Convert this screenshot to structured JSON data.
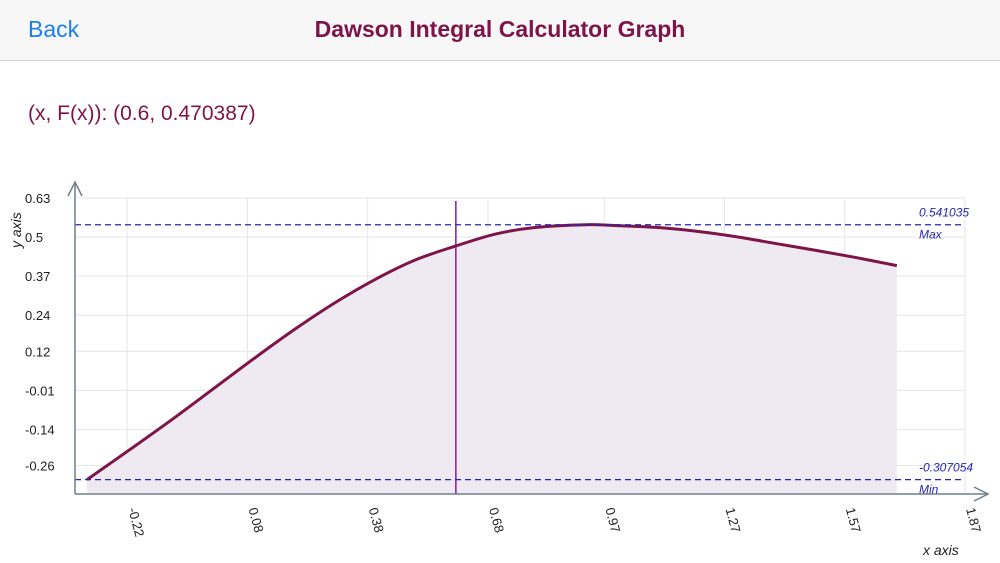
{
  "nav": {
    "back_label": "Back",
    "title": "Dawson Integral Calculator Graph"
  },
  "readout": {
    "text": "(x, F(x)): (0.6, 0.470387)"
  },
  "colors": {
    "curve": "#7e1448",
    "fill": "#efeaf2",
    "reference": "#2525b8",
    "cursor": "#8a1a9e",
    "back": "#1a7ff2"
  },
  "chart_data": {
    "type": "area",
    "xlabel": "x axis",
    "ylabel": "y axis",
    "xlim": [
      -0.35,
      1.87
    ],
    "ylim": [
      -0.355,
      0.63
    ],
    "x_ticks": [
      -0.22,
      0.08,
      0.38,
      0.68,
      0.97,
      1.27,
      1.57,
      1.87
    ],
    "y_ticks": [
      0.63,
      0.5,
      0.37,
      0.24,
      0.12,
      -0.01,
      -0.14,
      -0.26
    ],
    "x": [
      -0.32,
      -0.2,
      -0.1,
      0.0,
      0.1,
      0.2,
      0.3,
      0.4,
      0.5,
      0.6,
      0.7,
      0.8,
      0.924,
      1.0,
      1.1,
      1.2,
      1.3,
      1.4,
      1.5,
      1.6,
      1.7
    ],
    "y": [
      -0.307054,
      -0.1948,
      -0.0993,
      0.0,
      0.0993,
      0.1948,
      0.2826,
      0.3599,
      0.4244,
      0.470387,
      0.5105,
      0.5321,
      0.541035,
      0.5381,
      0.5321,
      0.5195,
      0.5011,
      0.478,
      0.4554,
      0.4313,
      0.405
    ],
    "cursor_x": 0.6,
    "reference_lines": [
      {
        "value": 0.541035,
        "value_text": "0.541035",
        "label": "Max"
      },
      {
        "value": -0.307054,
        "value_text": "-0.307054",
        "label": "Min"
      }
    ]
  }
}
